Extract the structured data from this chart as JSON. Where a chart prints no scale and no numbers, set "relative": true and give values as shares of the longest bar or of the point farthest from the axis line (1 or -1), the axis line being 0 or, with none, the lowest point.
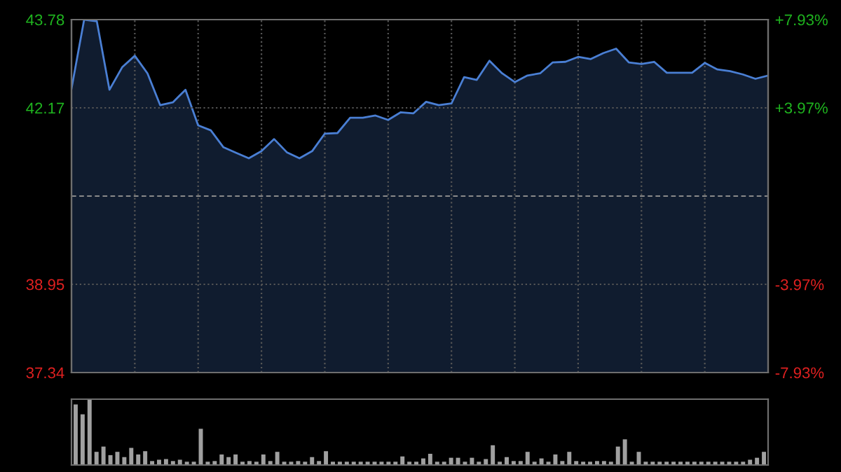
{
  "chart_data": [
    {
      "type": "area",
      "categories": [
        null,
        null,
        null,
        null,
        null,
        null,
        null,
        null,
        null,
        null,
        null,
        null,
        null,
        null,
        null,
        null,
        null,
        null,
        null,
        null,
        null,
        null,
        null,
        null,
        null,
        null,
        null,
        null,
        null,
        null,
        null,
        null,
        null,
        null,
        null,
        null,
        null,
        null,
        null,
        null,
        null,
        null,
        null,
        null,
        null,
        null,
        null,
        null,
        null,
        null,
        null,
        null,
        null,
        null,
        null,
        null
      ],
      "series": [
        {
          "color": "#4a7fd4",
          "values": [
            42.52,
            43.78,
            43.75,
            42.5,
            42.91,
            43.12,
            42.8,
            42.22,
            42.27,
            42.5,
            41.85,
            41.76,
            41.45,
            41.35,
            41.25,
            41.38,
            41.6,
            41.36,
            41.25,
            41.38,
            41.7,
            41.71,
            41.99,
            41.99,
            42.03,
            41.95,
            42.09,
            42.07,
            42.28,
            42.22,
            42.25,
            42.73,
            42.68,
            43.03,
            42.8,
            42.64,
            42.76,
            42.8,
            43.0,
            43.01,
            43.1,
            43.06,
            43.17,
            43.25,
            43.0,
            42.97,
            43.01,
            42.81,
            42.81,
            42.81,
            42.99,
            42.87,
            42.84,
            42.78,
            42.7,
            42.76
          ]
        }
      ],
      "ylim": [
        37.34,
        43.78
      ],
      "yticks": [
        37.34,
        38.95,
        42.17,
        43.78
      ],
      "y2lim": [
        -7.93,
        7.93
      ],
      "y2ticks": [
        {
          "value": -7.93,
          "label": "-7.93%"
        },
        {
          "value": -3.97,
          "label": "-3.97%"
        },
        {
          "value": 3.97,
          "label": "+3.97%"
        },
        {
          "value": 7.93,
          "label": "+7.93%"
        }
      ],
      "ref_lines": [
        {
          "axis": "y",
          "value": 40.56,
          "line_style": "dashed",
          "color": "#8a8a8a"
        }
      ],
      "grid": true,
      "line_style": "solid",
      "marker": "none",
      "legend": false
    },
    {
      "type": "bar",
      "categories": [
        null,
        null,
        null,
        null,
        null,
        null,
        null,
        null,
        null,
        null,
        null,
        null,
        null,
        null,
        null,
        null,
        null,
        null,
        null,
        null,
        null,
        null,
        null,
        null,
        null,
        null,
        null,
        null,
        null,
        null,
        null,
        null,
        null,
        null,
        null,
        null,
        null,
        null,
        null,
        null,
        null,
        null,
        null,
        null,
        null,
        null,
        null,
        null,
        null,
        null,
        null,
        null,
        null,
        null,
        null,
        null,
        null,
        null,
        null,
        null,
        null,
        null,
        null,
        null,
        null,
        null,
        null,
        null,
        null,
        null,
        null,
        null,
        null,
        null,
        null,
        null,
        null,
        null,
        null,
        null,
        null,
        null,
        null,
        null,
        null,
        null,
        null,
        null,
        null,
        null,
        null,
        null,
        null,
        null,
        null,
        null,
        null,
        null,
        null,
        null
      ],
      "values": [
        0.92,
        0.77,
        1.0,
        0.2,
        0.28,
        0.15,
        0.2,
        0.12,
        0.26,
        0.16,
        0.21,
        0.06,
        0.08,
        0.09,
        0.06,
        0.08,
        0.05,
        0.05,
        0.55,
        0.05,
        0.06,
        0.16,
        0.12,
        0.16,
        0.05,
        0.06,
        0.05,
        0.16,
        0.06,
        0.2,
        0.05,
        0.05,
        0.06,
        0.05,
        0.12,
        0.06,
        0.21,
        0.05,
        0.05,
        0.05,
        0.05,
        0.05,
        0.05,
        0.05,
        0.05,
        0.05,
        0.05,
        0.13,
        0.05,
        0.05,
        0.1,
        0.17,
        0.05,
        0.05,
        0.11,
        0.11,
        0.05,
        0.11,
        0.05,
        0.09,
        0.3,
        0.05,
        0.12,
        0.06,
        0.06,
        0.2,
        0.05,
        0.1,
        0.05,
        0.16,
        0.06,
        0.2,
        0.06,
        0.05,
        0.05,
        0.06,
        0.06,
        0.05,
        0.28,
        0.39,
        0.05,
        0.2,
        0.05,
        0.05,
        0.05,
        0.05,
        0.05,
        0.05,
        0.05,
        0.05,
        0.05,
        0.05,
        0.05,
        0.05,
        0.05,
        0.05,
        0.05,
        0.08,
        0.11,
        0.2
      ],
      "color": "#a0a0a0",
      "relative": true
    }
  ]
}
